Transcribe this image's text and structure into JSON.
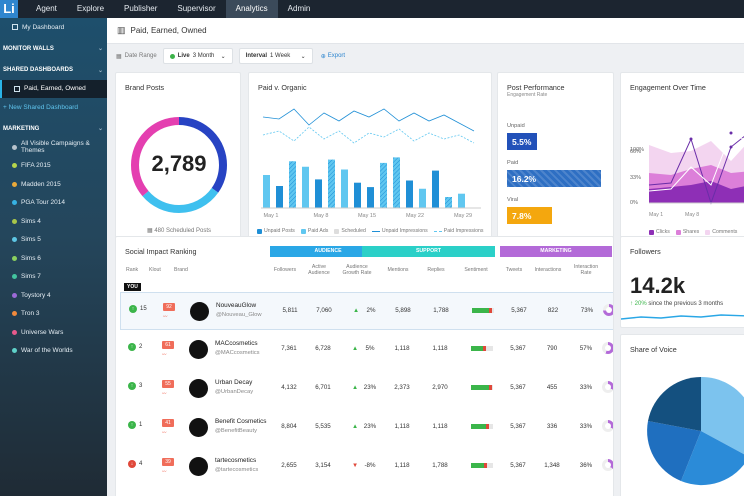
{
  "topnav": {
    "logo": "Li",
    "items": [
      "Agent",
      "Explore",
      "Publisher",
      "Supervisor",
      "Analytics",
      "Admin"
    ],
    "active": "Analytics"
  },
  "sidebar": {
    "dashboard": "My Dashboard",
    "monitor_walls": "MONITOR WALLS",
    "shared_dashboards": "SHARED DASHBOARDS",
    "paid_earned_owned": "Paid, Earned, Owned",
    "new_shared": "+ New Shared Dashboard",
    "marketing": "MARKETING",
    "campaigns": [
      {
        "label": "All Visible Campaigns & Themes",
        "color": "#b7c3cc"
      },
      {
        "label": "FIFA 2015",
        "color": "#b6d54c"
      },
      {
        "label": "Madden 2015",
        "color": "#e9a93a"
      },
      {
        "label": "PGA Tour 2014",
        "color": "#36b2e3"
      },
      {
        "label": "Sims 4",
        "color": "#a8c64a"
      },
      {
        "label": "Sims 5",
        "color": "#5ec6e4"
      },
      {
        "label": "Sims 6",
        "color": "#8bd05e"
      },
      {
        "label": "Sims 7",
        "color": "#43c49f"
      },
      {
        "label": "Toystory 4",
        "color": "#9c6ad6"
      },
      {
        "label": "Tron 3",
        "color": "#f18a3c"
      },
      {
        "label": "Universe Wars",
        "color": "#e75a8c"
      },
      {
        "label": "War of the Worlds",
        "color": "#5fd1c9"
      }
    ]
  },
  "header": {
    "title": "Paid, Earned, Owned"
  },
  "filters": {
    "date_range_label": "Date Range",
    "live_label": "Live",
    "live_value": "3 Month",
    "interval_label": "Interval",
    "interval_value": "1 Week",
    "export_label": "Export"
  },
  "brand_posts": {
    "title": "Brand Posts",
    "value": "2,789",
    "scheduled": "480 Scheduled Posts"
  },
  "paid_organic": {
    "title": "Paid v. Organic",
    "x_labels": [
      "May 1",
      "May 8",
      "May 15",
      "May 22",
      "May 29"
    ],
    "legend": [
      "Unpaid Posts",
      "Paid Ads",
      "Scheduled",
      "Unpaid Impressions",
      "Paid Impressions"
    ]
  },
  "post_performance": {
    "title": "Post Performance",
    "subtitle": "Engagement Rate",
    "items": [
      {
        "label": "Unpaid",
        "value": "5.5%",
        "color": "#2251b9",
        "fraction": 0.3
      },
      {
        "label": "Paid",
        "value": "16.2%",
        "color": "#2e6fc3",
        "fraction": 0.95
      },
      {
        "label": "Viral",
        "value": "7.8%",
        "color": "#f4a70e",
        "fraction": 0.45
      }
    ]
  },
  "engagement": {
    "title": "Engagement Over Time",
    "y_ticks": [
      "100%",
      "66%",
      "33%",
      "0%"
    ],
    "x_labels": [
      "May 1",
      "May 8"
    ],
    "legend": [
      "Clicks",
      "Shares",
      "Comments"
    ]
  },
  "social_impact": {
    "title": "Social Impact Ranking",
    "groups": [
      "AUDIENCE",
      "SUPPORT",
      "MARKETING"
    ],
    "cols": [
      "Rank",
      "Klout",
      "Brand",
      "Followers",
      "Active Audience",
      "Audience Growth Rate",
      "Mentions",
      "Replies",
      "Sentiment",
      "Tweets",
      "Interactions",
      "Interaction Rate"
    ],
    "you": "YOU",
    "rows": [
      {
        "rank": "15",
        "klout": "92",
        "name": "NouveauGlow",
        "handle": "@Nouveau_Glow",
        "followers": "5,811",
        "active": "7,060",
        "growth": "2%",
        "mentions": "5,898",
        "replies": "1,788",
        "tweets": "5,367",
        "interactions": "822",
        "rate": "73%",
        "dir": "up",
        "sent": 0.75,
        "ratef": 0.73
      },
      {
        "rank": "2",
        "klout": "61",
        "name": "MACcosmetics",
        "handle": "@MACcosmetics",
        "followers": "7,361",
        "active": "6,728",
        "growth": "5%",
        "mentions": "1,118",
        "replies": "1,118",
        "tweets": "5,367",
        "interactions": "790",
        "rate": "57%",
        "dir": "up",
        "sent": 0.55,
        "ratef": 0.57
      },
      {
        "rank": "3",
        "klout": "55",
        "name": "Urban Decay",
        "handle": "@UrbanDecay",
        "followers": "4,132",
        "active": "6,701",
        "growth": "23%",
        "mentions": "2,373",
        "replies": "2,970",
        "tweets": "5,367",
        "interactions": "455",
        "rate": "33%",
        "dir": "up",
        "sent": 0.8,
        "ratef": 0.33
      },
      {
        "rank": "1",
        "klout": "41",
        "name": "Benefit Cosmetics",
        "handle": "@BenefitBeauty",
        "followers": "8,804",
        "active": "5,535",
        "growth": "23%",
        "mentions": "1,118",
        "replies": "1,118",
        "tweets": "5,367",
        "interactions": "336",
        "rate": "33%",
        "dir": "up",
        "sent": 0.7,
        "ratef": 0.33
      },
      {
        "rank": "4",
        "klout": "39",
        "name": "tartecosmetics",
        "handle": "@tartecosmetics",
        "followers": "2,655",
        "active": "3,154",
        "growth": "-8%",
        "mentions": "1,118",
        "replies": "1,788",
        "tweets": "5,367",
        "interactions": "1,348",
        "rate": "36%",
        "dir": "down",
        "sent": 0.6,
        "ratef": 0.36
      }
    ]
  },
  "followers": {
    "title": "Followers",
    "value": "14.2k",
    "change": "20%",
    "change_text": "since the previous 3 months"
  },
  "share_of_voice": {
    "title": "Share of Voice"
  },
  "colors": {
    "accent": "#2f86cf",
    "audience": "#2aa7e6",
    "support": "#2bd0c8",
    "marketing": "#b36ad8"
  }
}
